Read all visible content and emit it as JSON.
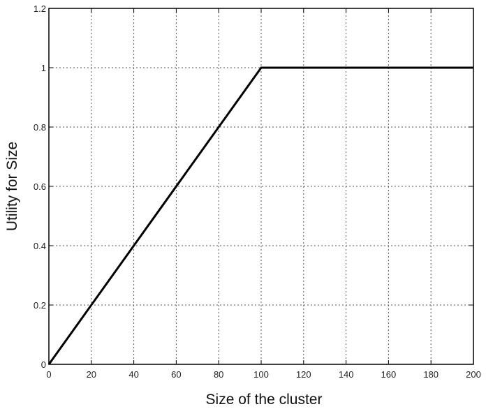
{
  "chart_data": {
    "type": "line",
    "title": "",
    "xlabel": "Size of the cluster",
    "ylabel": "Utility for Size",
    "xlim": [
      0,
      200
    ],
    "ylim": [
      0,
      1.2
    ],
    "grid": true,
    "x_ticks": [
      "0",
      "20",
      "40",
      "60",
      "80",
      "100",
      "120",
      "140",
      "160",
      "180",
      "200"
    ],
    "y_ticks": [
      "0",
      "0.2",
      "0.4",
      "0.6",
      "0.8",
      "1",
      "1.2"
    ],
    "series": [
      {
        "x": [
          0,
          100,
          200
        ],
        "y": [
          0,
          1,
          1
        ],
        "color": "#000000"
      }
    ]
  }
}
